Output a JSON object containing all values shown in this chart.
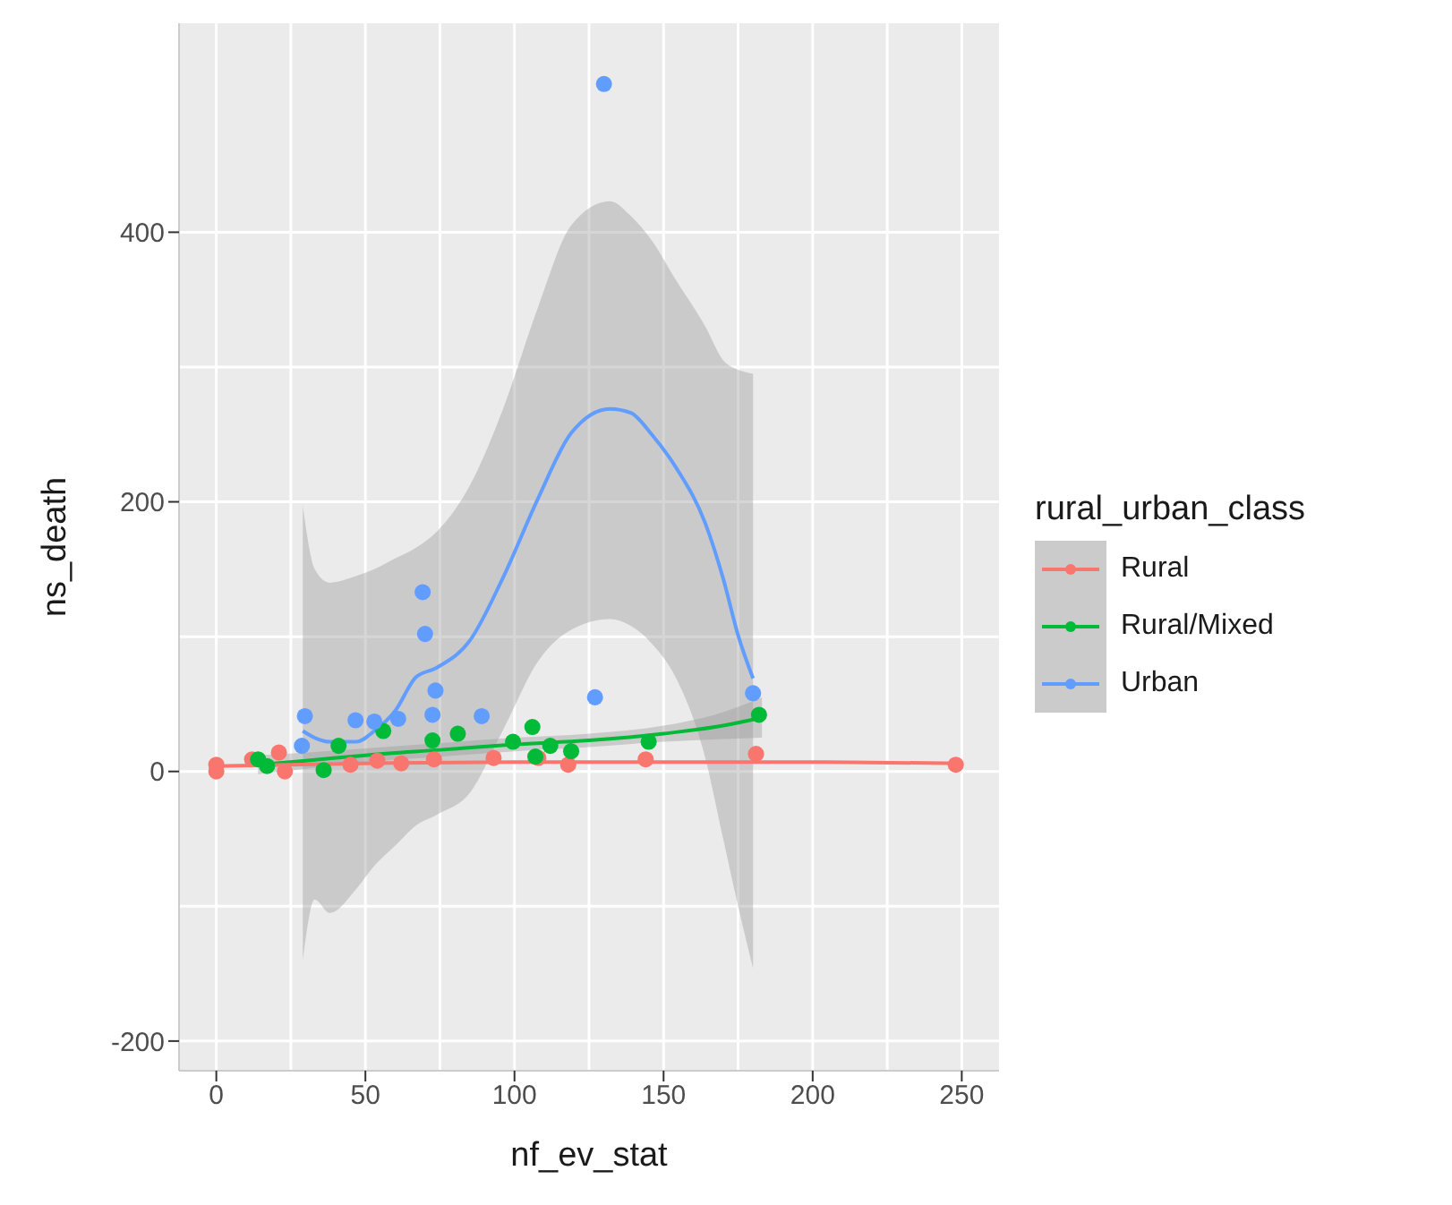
{
  "chart_data": {
    "type": "scatter",
    "xlabel": "nf_ev_stat",
    "ylabel": "ns_death",
    "legend_title": "rural_urban_class",
    "xlim": [
      -12.5,
      262.5
    ],
    "ylim": [
      -222,
      555
    ],
    "xticks": [
      0,
      50,
      100,
      150,
      200,
      250
    ],
    "yticks": [
      -200,
      0,
      200,
      400
    ],
    "grid": true,
    "legend": "right",
    "series": [
      {
        "type": "line",
        "marker": "none",
        "color": "#619cff",
        "x": [
          29,
          33,
          38,
          47,
          53,
          60,
          67,
          74,
          85,
          96,
          108,
          119,
          132,
          139,
          146,
          154,
          164,
          170,
          175,
          180
        ],
        "values": [
          30,
          25,
          22,
          22,
          30,
          45,
          70,
          77,
          97,
          143,
          203,
          251,
          269,
          266,
          250,
          226,
          184,
          143,
          101,
          69
        ],
        "lower": [
          -140,
          -95,
          -105,
          -87,
          -70,
          -55,
          -40,
          -32,
          -16,
          30,
          82,
          105,
          113,
          108,
          95,
          70,
          10,
          -50,
          -100,
          -146
        ],
        "upper": [
          197,
          150,
          140,
          145,
          150,
          158,
          166,
          178,
          212,
          268,
          345,
          405,
          423,
          412,
          394,
          365,
          330,
          305,
          298,
          295
        ]
      },
      {
        "type": "line",
        "marker": "none",
        "color": "#00ba38",
        "x": [
          14,
          30,
          50,
          75,
          100,
          125,
          150,
          170,
          183
        ],
        "values": [
          5,
          8,
          12,
          16,
          20,
          23,
          28,
          34,
          40
        ],
        "lower": [
          -2,
          2,
          7,
          11,
          15,
          18,
          22,
          24,
          25
        ],
        "upper": [
          12,
          14,
          17,
          21,
          25,
          28,
          34,
          44,
          55
        ]
      },
      {
        "type": "line",
        "marker": "none",
        "color": "#f8766d",
        "x": [
          0,
          50,
          100,
          150,
          200,
          250
        ],
        "values": [
          4,
          6,
          7,
          7,
          7,
          6
        ]
      },
      {
        "marker": "circle",
        "name": "Rural",
        "color": "#f8766d",
        "x": [
          0,
          0,
          12,
          21,
          23,
          45,
          54,
          62,
          73,
          93,
          108,
          118,
          144,
          181,
          248
        ],
        "values": [
          5,
          0,
          9,
          14,
          0,
          5,
          8,
          6,
          9,
          10,
          10,
          5,
          9,
          13,
          5
        ]
      },
      {
        "marker": "circle",
        "name": "Rural/Mixed",
        "color": "#00ba38",
        "x": [
          14,
          17,
          36,
          41,
          56,
          72.5,
          81,
          99.5,
          106,
          107,
          112,
          119,
          145,
          182
        ],
        "values": [
          9,
          4,
          1,
          19,
          30,
          23,
          28,
          22,
          33,
          11,
          19,
          15,
          22,
          42
        ]
      },
      {
        "marker": "circle",
        "name": "Urban",
        "color": "#619cff",
        "x": [
          29.7,
          28.7,
          46.7,
          53,
          61,
          69.2,
          70,
          73.5,
          72.5,
          89,
          127,
          130,
          180
        ],
        "values": [
          41,
          19,
          38,
          37,
          39,
          133,
          102,
          60,
          42,
          41,
          55,
          510,
          58
        ]
      }
    ]
  }
}
